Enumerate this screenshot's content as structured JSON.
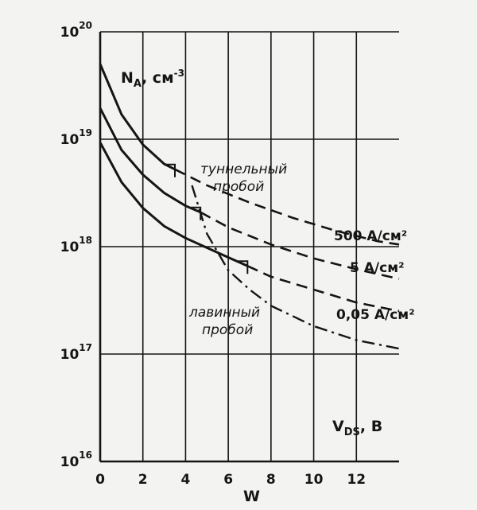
{
  "chart_data": {
    "type": "line",
    "ylabel": "N",
    "ylabel_sub": "A",
    "ylabel_unit": ", см",
    "ylabel_unit_exp": "-3",
    "xlabel_right": "V",
    "xlabel_right_sub": "DS",
    "xlabel_right_unit": ", B",
    "xlabel": "W",
    "xlim": [
      0,
      14
    ],
    "ylim_exp": [
      16,
      20
    ],
    "y_scale": "log",
    "grid": true,
    "x_ticks": [
      "0",
      "2",
      "4",
      "6",
      "8",
      "10",
      "12"
    ],
    "y_ticks": [
      {
        "base": "10",
        "exp": "20"
      },
      {
        "base": "10",
        "exp": "19"
      },
      {
        "base": "10",
        "exp": "18"
      },
      {
        "base": "10",
        "exp": "17"
      },
      {
        "base": "10",
        "exp": "16"
      }
    ],
    "y_tick_exps": [
      20,
      19,
      18,
      17,
      16
    ],
    "series": [
      {
        "name": "500 A/см²",
        "style": "solid-then-dashed",
        "break_x": 3.5,
        "points": [
          [
            0,
            19.7
          ],
          [
            1,
            19.23
          ],
          [
            2,
            18.95
          ],
          [
            3,
            18.77
          ],
          [
            3.5,
            18.72
          ],
          [
            5,
            18.57
          ],
          [
            7,
            18.41
          ],
          [
            9,
            18.27
          ],
          [
            11,
            18.15
          ],
          [
            13,
            18.05
          ],
          [
            14,
            18.02
          ]
        ]
      },
      {
        "name": "5 A/см²",
        "style": "solid-then-dashed",
        "break_x": 4.7,
        "points": [
          [
            0,
            19.29
          ],
          [
            1,
            18.9
          ],
          [
            2,
            18.67
          ],
          [
            3,
            18.5
          ],
          [
            4,
            18.38
          ],
          [
            4.7,
            18.32
          ],
          [
            6,
            18.18
          ],
          [
            8,
            18.02
          ],
          [
            10,
            17.89
          ],
          [
            12,
            17.79
          ],
          [
            14,
            17.7
          ]
        ]
      },
      {
        "name": "0.05 A/см²",
        "style": "solid-then-dashed",
        "break_x": 6.9,
        "points": [
          [
            0,
            18.97
          ],
          [
            1,
            18.6
          ],
          [
            2,
            18.36
          ],
          [
            3,
            18.19
          ],
          [
            4,
            18.08
          ],
          [
            5,
            17.99
          ],
          [
            6,
            17.9
          ],
          [
            6.9,
            17.82
          ],
          [
            8,
            17.72
          ],
          [
            10,
            17.6
          ],
          [
            12,
            17.48
          ],
          [
            14,
            17.4
          ]
        ]
      },
      {
        "name": "",
        "style": "dashdot",
        "points": [
          [
            4.3,
            18.57
          ],
          [
            5,
            18.12
          ],
          [
            6,
            17.78
          ],
          [
            7,
            17.6
          ],
          [
            8,
            17.45
          ],
          [
            10,
            17.26
          ],
          [
            12,
            17.13
          ],
          [
            14,
            17.05
          ]
        ]
      }
    ],
    "labels": {
      "s500": "500 A/см²",
      "s5": "5 A/см²",
      "s005": "0,05 A/см²"
    },
    "annotations": {
      "tunnel_line1": "туннельный",
      "tunnel_line2": "пробой",
      "avalanche_line1": "лавинный",
      "avalanche_line2": "пробой"
    },
    "colors": {
      "ink": "#151515",
      "background": "#f3f3f1"
    }
  }
}
